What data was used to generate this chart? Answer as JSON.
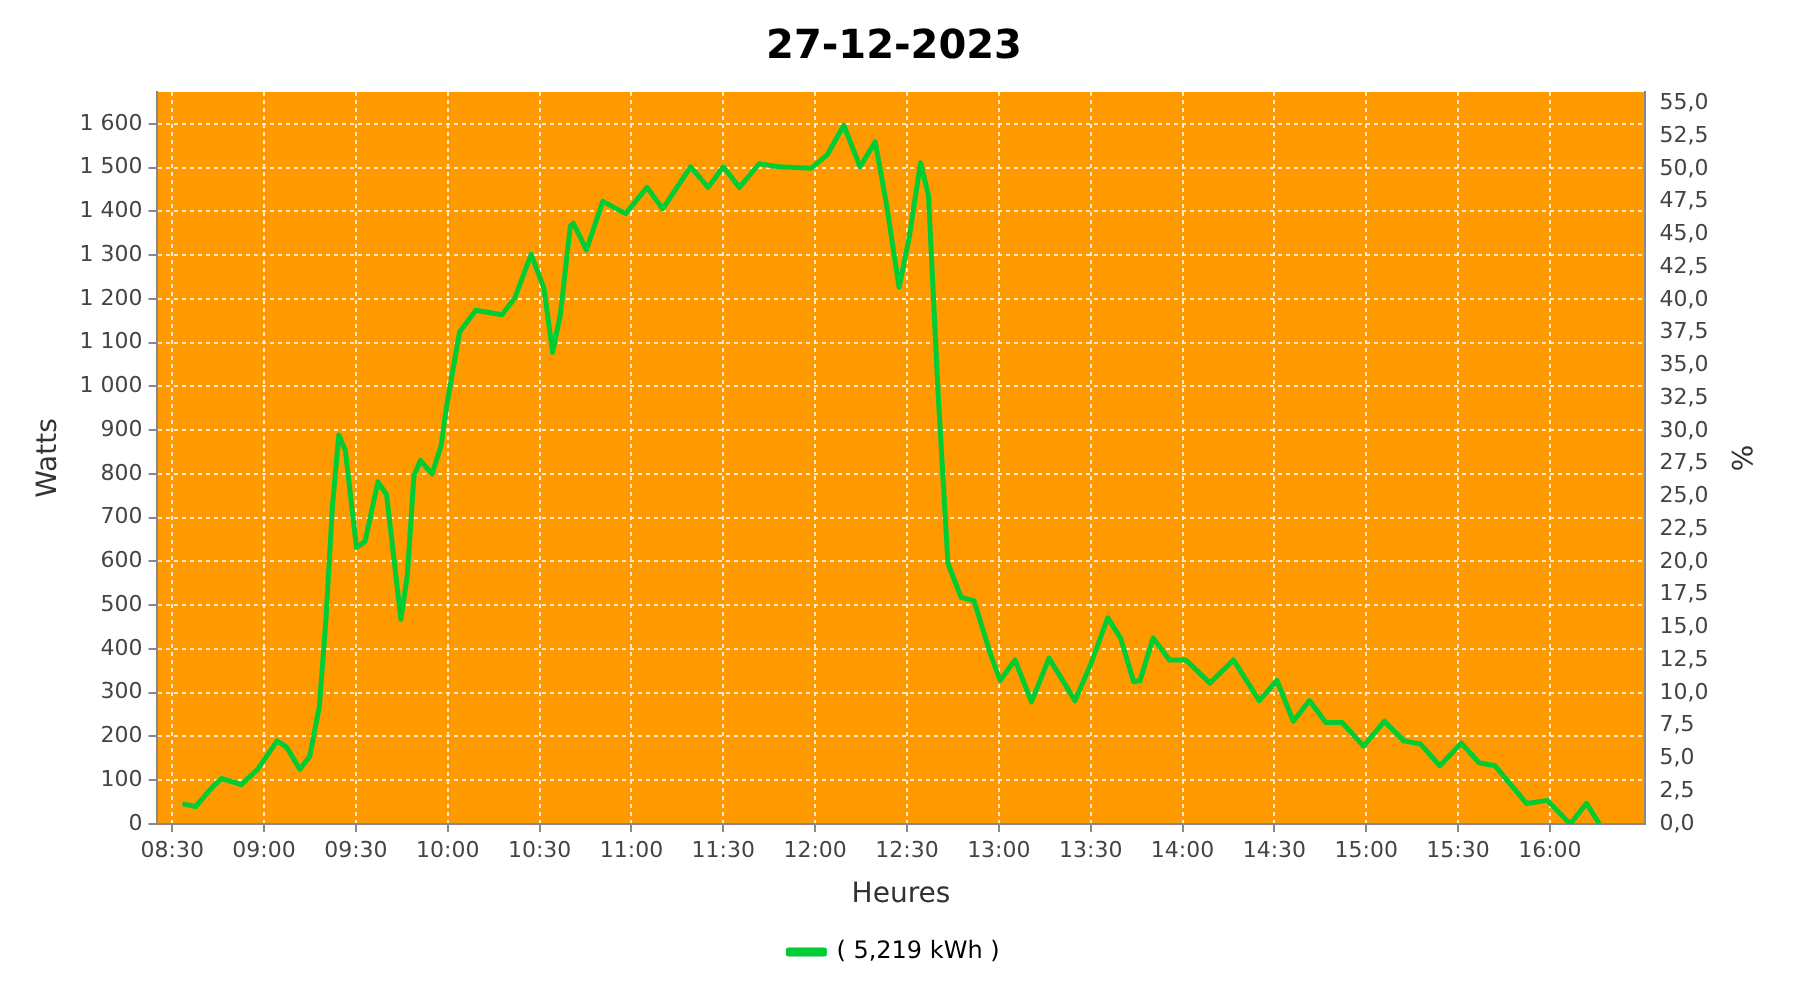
{
  "chart_data": {
    "type": "line",
    "title": "27-12-2023",
    "xlabel": "Heures",
    "ylabel": "Watts",
    "y2label": "%",
    "x": [
      8.556,
      8.628,
      8.716,
      8.769,
      8.876,
      8.965,
      9.071,
      9.124,
      9.195,
      9.248,
      9.301,
      9.337,
      9.372,
      9.407,
      9.443,
      9.503,
      9.55,
      9.62,
      9.667,
      9.745,
      9.78,
      9.816,
      9.851,
      9.915,
      9.965,
      9.993,
      10.064,
      10.152,
      10.295,
      10.365,
      10.454,
      10.524,
      10.571,
      10.614,
      10.667,
      10.684,
      10.755,
      10.844,
      10.968,
      11.085,
      11.17,
      11.322,
      11.418,
      11.5,
      11.588,
      11.695,
      11.801,
      11.979,
      12.067,
      12.156,
      12.245,
      12.327,
      12.386,
      12.457,
      12.511,
      12.574,
      12.617,
      12.67,
      12.723,
      12.795,
      12.865,
      12.954,
      13.007,
      13.088,
      13.178,
      13.273,
      13.415,
      13.503,
      13.593,
      13.663,
      13.734,
      13.769,
      13.84,
      13.929,
      14.018,
      14.149,
      14.277,
      14.418,
      14.514,
      14.603,
      14.691,
      14.78,
      14.869,
      14.986,
      15.099,
      15.205,
      15.295,
      15.401,
      15.518,
      15.614,
      15.702,
      15.872,
      15.986,
      16.11,
      16.199,
      16.27
    ],
    "series": [
      {
        "name": "( 5,219 kWh )",
        "color": "#00cc33",
        "values": [
          46,
          40,
          83,
          104,
          90,
          125,
          190,
          175,
          125,
          154,
          268,
          468,
          724,
          889,
          853,
          632,
          646,
          782,
          753,
          468,
          568,
          796,
          831,
          800,
          867,
          953,
          1124,
          1174,
          1164,
          1202,
          1302,
          1224,
          1078,
          1167,
          1366,
          1373,
          1312,
          1423,
          1395,
          1455,
          1406,
          1502,
          1455,
          1502,
          1455,
          1509,
          1502,
          1499,
          1530,
          1597,
          1502,
          1559,
          1423,
          1227,
          1338,
          1511,
          1437,
          981,
          596,
          518,
          510,
          389,
          328,
          375,
          279,
          379,
          282,
          368,
          471,
          425,
          325,
          328,
          425,
          375,
          375,
          322,
          375,
          282,
          328,
          235,
          282,
          232,
          232,
          178,
          235,
          190,
          183,
          133,
          185,
          140,
          133,
          47,
          54,
          0,
          47,
          0
        ]
      }
    ],
    "xlim": [
      8.415,
      16.52
    ],
    "xticks": [
      {
        "value": 8.5,
        "label": "08:30"
      },
      {
        "value": 9,
        "label": "09:00"
      },
      {
        "value": 9.5,
        "label": "09:30"
      },
      {
        "value": 10,
        "label": "10:00"
      },
      {
        "value": 10.5,
        "label": "10:30"
      },
      {
        "value": 11,
        "label": "11:00"
      },
      {
        "value": 11.5,
        "label": "11:30"
      },
      {
        "value": 12,
        "label": "12:00"
      },
      {
        "value": 12.5,
        "label": "12:30"
      },
      {
        "value": 13,
        "label": "13:00"
      },
      {
        "value": 13.5,
        "label": "13:30"
      },
      {
        "value": 14,
        "label": "14:00"
      },
      {
        "value": 14.5,
        "label": "14:30"
      },
      {
        "value": 15,
        "label": "15:00"
      },
      {
        "value": 15.5,
        "label": "15:30"
      },
      {
        "value": 16,
        "label": "16:00"
      }
    ],
    "ylim": [
      0,
      1673
    ],
    "yticks": [
      0,
      100,
      200,
      300,
      400,
      500,
      600,
      700,
      800,
      900,
      {
        "value": 1000,
        "label": "1 000"
      },
      {
        "value": 1100,
        "label": "1 100"
      },
      {
        "value": 1200,
        "label": "1 200"
      },
      {
        "value": 1300,
        "label": "1 300"
      },
      {
        "value": 1400,
        "label": "1 400"
      },
      {
        "value": 1500,
        "label": "1 500"
      },
      {
        "value": 1600,
        "label": "1 600"
      }
    ],
    "y2lim": [
      0,
      55.86
    ],
    "y2ticks": [
      {
        "value": 0,
        "label": "0,0"
      },
      {
        "value": 2.5,
        "label": "2,5"
      },
      {
        "value": 5,
        "label": "5,0"
      },
      {
        "value": 7.5,
        "label": "7,5"
      },
      {
        "value": 10,
        "label": "10,0"
      },
      {
        "value": 12.5,
        "label": "12,5"
      },
      {
        "value": 15,
        "label": "15,0"
      },
      {
        "value": 17.5,
        "label": "17,5"
      },
      {
        "value": 20,
        "label": "20,0"
      },
      {
        "value": 22.5,
        "label": "22,5"
      },
      {
        "value": 25,
        "label": "25,0"
      },
      {
        "value": 27.5,
        "label": "27,5"
      },
      {
        "value": 30,
        "label": "30,0"
      },
      {
        "value": 32.5,
        "label": "32,5"
      },
      {
        "value": 35,
        "label": "35,0"
      },
      {
        "value": 37.5,
        "label": "37,5"
      },
      {
        "value": 40,
        "label": "40,0"
      },
      {
        "value": 42.5,
        "label": "42,5"
      },
      {
        "value": 45,
        "label": "45,0"
      },
      {
        "value": 47.5,
        "label": "47,5"
      },
      {
        "value": 50,
        "label": "50,0"
      },
      {
        "value": 52.5,
        "label": "52,5"
      },
      {
        "value": 55,
        "label": "55,0"
      }
    ],
    "grid": true,
    "legend": "bottom",
    "marker": "none",
    "line_style": "solid"
  }
}
